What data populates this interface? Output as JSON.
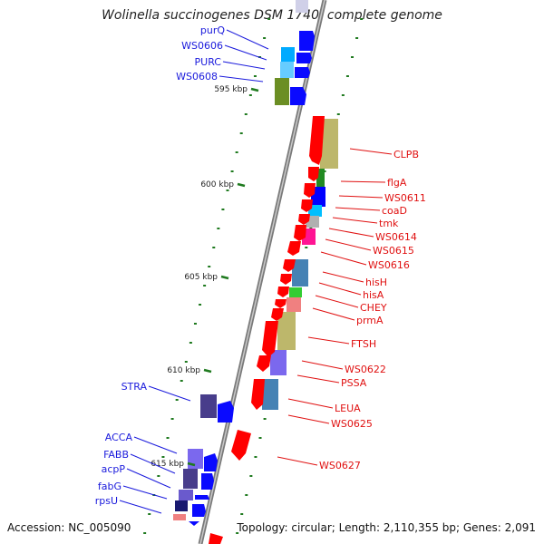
{
  "title": "Wolinella succinogenes DSM 1740, complete genome",
  "footer": {
    "accession": "Accession: NC_005090",
    "topology": "Topology: circular; Length: 2,110,355 bp; Genes: 2,091"
  },
  "colors": {
    "forward_labels": "#1a1adc",
    "reverse_labels": "#e01010",
    "tick_marks": "#1f7a1f",
    "backbone": "#808080"
  },
  "ticks": [
    {
      "label": "595 kbp",
      "kbp": 595
    },
    {
      "label": "600 kbp",
      "kbp": 600
    },
    {
      "label": "605 kbp",
      "kbp": 605
    },
    {
      "label": "610 kbp",
      "kbp": 610
    },
    {
      "label": "615 kbp",
      "kbp": 615
    }
  ],
  "forward_genes": [
    {
      "label": "purQ"
    },
    {
      "label": "WS0606"
    },
    {
      "label": "PURC"
    },
    {
      "label": "WS0608"
    },
    {
      "label": "STRA"
    },
    {
      "label": "ACCA"
    },
    {
      "label": "FABB"
    },
    {
      "label": "acpP"
    },
    {
      "label": "fabG"
    },
    {
      "label": "rpsU"
    }
  ],
  "reverse_genes": [
    {
      "label": "CLPB"
    },
    {
      "label": "flgA"
    },
    {
      "label": "WS0611"
    },
    {
      "label": "coaD"
    },
    {
      "label": "tmk"
    },
    {
      "label": "WS0614"
    },
    {
      "label": "WS0615"
    },
    {
      "label": "WS0616"
    },
    {
      "label": "hisH"
    },
    {
      "label": "hisA"
    },
    {
      "label": "CHEY"
    },
    {
      "label": "prmA"
    },
    {
      "label": "FTSH"
    },
    {
      "label": "WS0622"
    },
    {
      "label": "PSSA"
    },
    {
      "label": "LEUA"
    },
    {
      "label": "WS0625"
    },
    {
      "label": "WS0627"
    }
  ]
}
